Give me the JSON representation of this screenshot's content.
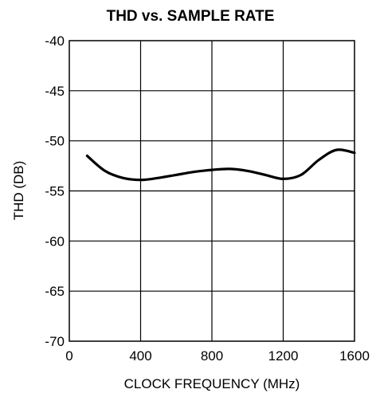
{
  "chart_data": {
    "type": "line",
    "title": "THD vs. SAMPLE RATE",
    "xlabel": "CLOCK FREQUENCY (MHz)",
    "ylabel": "THD (DB)",
    "xlim": [
      0,
      1600
    ],
    "ylim": [
      -70,
      -40
    ],
    "xticks": [
      "0",
      "400",
      "800",
      "1200",
      "1600"
    ],
    "yticks": [
      "-40",
      "-45",
      "-50",
      "-55",
      "-60",
      "-65",
      "-70"
    ],
    "grid": true,
    "series": [
      {
        "name": "",
        "x": [
          100,
          200,
          300,
          400,
          500,
          600,
          700,
          800,
          900,
          1000,
          1100,
          1200,
          1300,
          1400,
          1500,
          1600
        ],
        "y": [
          -51.5,
          -53.0,
          -53.7,
          -53.9,
          -53.7,
          -53.4,
          -53.1,
          -52.9,
          -52.8,
          -53.0,
          -53.4,
          -53.8,
          -53.4,
          -51.9,
          -50.9,
          -51.2
        ]
      }
    ]
  }
}
